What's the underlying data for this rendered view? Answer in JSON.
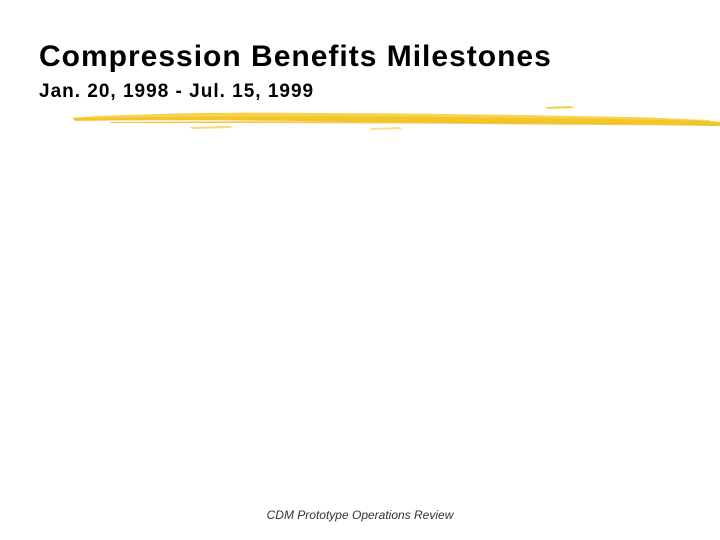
{
  "slide": {
    "title": "Compression Benefits Milestones",
    "subtitle": "Jan. 20, 1998 - Jul. 15, 1999",
    "footer": "CDM Prototype Operations Review"
  },
  "colors": {
    "accent_stroke": "#f2c21b",
    "accent_stroke_light": "#f7d75a",
    "text": "#000000"
  }
}
